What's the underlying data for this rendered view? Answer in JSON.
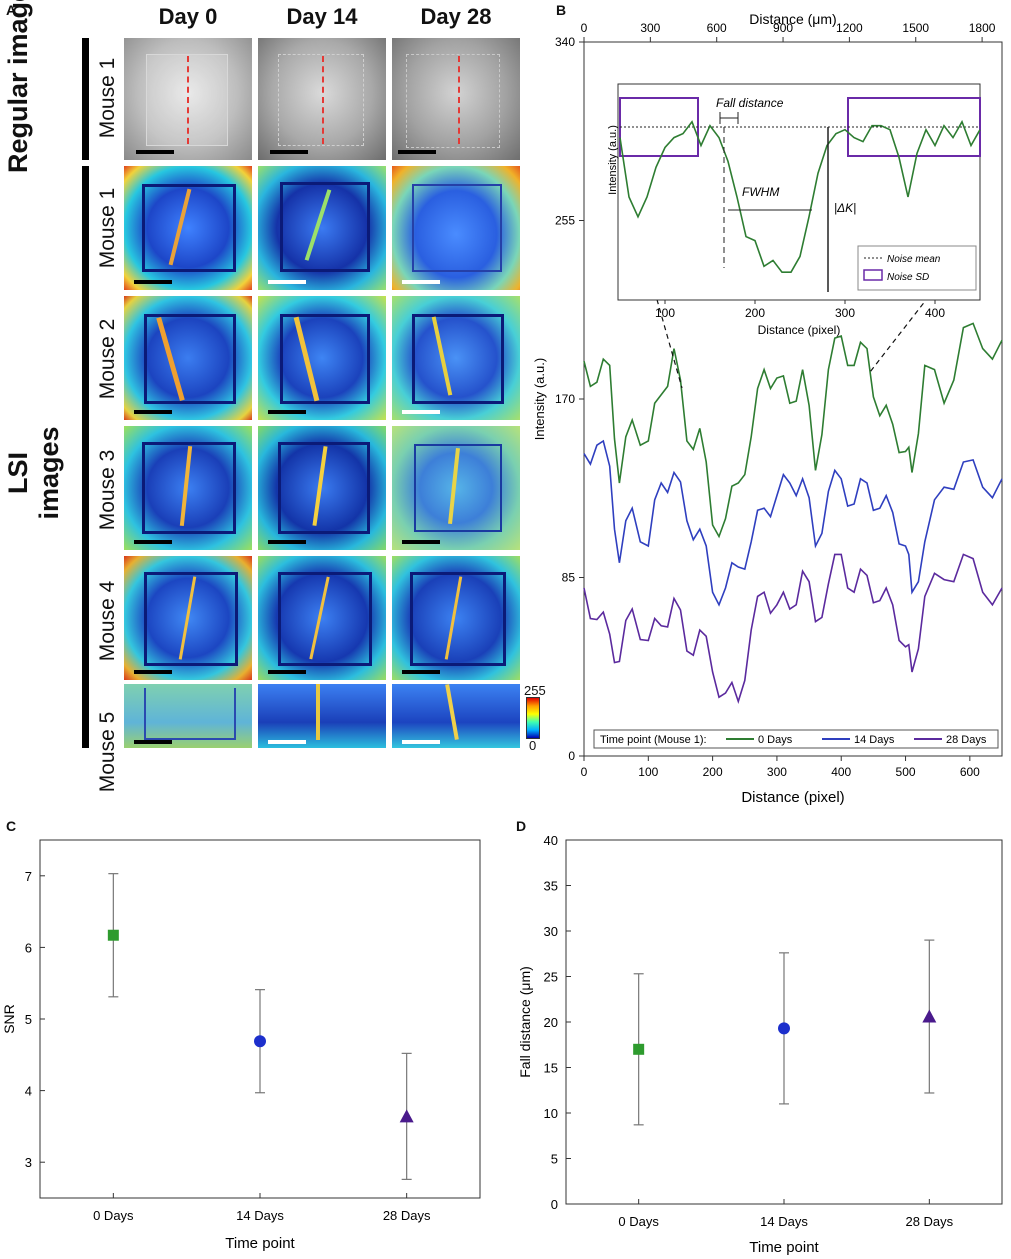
{
  "panel_a": {
    "letter": "A",
    "column_headers": [
      "Day 0",
      "Day 14",
      "Day 28"
    ],
    "group_labels": [
      "Regular images",
      "LSI images"
    ],
    "row_labels": [
      "Mouse 1",
      "Mouse 1",
      "Mouse 2",
      "Mouse 3",
      "Mouse 4",
      "Mouse 5"
    ],
    "colorbar": {
      "max": "255",
      "min": "0"
    }
  },
  "panel_b": {
    "letter": "B",
    "top_axis_label": "Distance (μm)",
    "bottom_axis_label": "Distance (pixel)",
    "y_axis_label": "Intensity (a.u.)",
    "inset": {
      "y_label": "Intensity (a.u.)",
      "x_label": "Distance (pixel)",
      "annotations": [
        "Fall distance",
        "FWHM",
        "|ΔK|"
      ],
      "legend": [
        "Noise mean",
        "Noise SD"
      ]
    },
    "legend": {
      "title": "Time point (Mouse 1):",
      "entries": [
        "0 Days",
        "14 Days",
        "28 Days"
      ]
    }
  },
  "panel_c": {
    "letter": "C"
  },
  "panel_d": {
    "letter": "D"
  },
  "chart_data": [
    {
      "id": "B",
      "type": "line",
      "title": "",
      "xlabel": "Distance (pixel)",
      "ylabel": "Intensity (a.u.)",
      "xlim": [
        0,
        650
      ],
      "ylim": [
        0,
        340
      ],
      "x_ticks": [
        "0",
        "100",
        "200",
        "300",
        "400",
        "500",
        "600"
      ],
      "y_ticks": [
        "0",
        "85",
        "170",
        "255",
        "340"
      ],
      "top_axis": {
        "label": "Distance (μm)",
        "ticks": [
          "0",
          "300",
          "600",
          "900",
          "1200",
          "1500",
          "1800"
        ]
      },
      "x": [
        0,
        20,
        40,
        55,
        75,
        100,
        120,
        140,
        160,
        180,
        200,
        220,
        240,
        260,
        280,
        300,
        320,
        340,
        360,
        380,
        400,
        420,
        440,
        460,
        480,
        500,
        510,
        530,
        560,
        590,
        620,
        650
      ],
      "series": [
        {
          "name": "0 Days",
          "color": "#2e7d32",
          "values": [
            188,
            178,
            186,
            130,
            160,
            150,
            172,
            194,
            150,
            156,
            110,
            113,
            130,
            152,
            184,
            180,
            168,
            184,
            136,
            184,
            200,
            186,
            194,
            162,
            158,
            145,
            135,
            186,
            168,
            204,
            194,
            198
          ]
        },
        {
          "name": "14 Days",
          "color": "#2f3fbf",
          "values": [
            144,
            148,
            138,
            92,
            118,
            100,
            130,
            135,
            112,
            108,
            78,
            80,
            90,
            102,
            118,
            124,
            130,
            132,
            100,
            126,
            132,
            120,
            130,
            118,
            116,
            100,
            78,
            102,
            128,
            140,
            128,
            132
          ]
        },
        {
          "name": "28 Days",
          "color": "#5b2a9e",
          "values": [
            80,
            65,
            58,
            45,
            70,
            55,
            62,
            75,
            50,
            60,
            40,
            30,
            26,
            60,
            78,
            72,
            70,
            88,
            64,
            82,
            96,
            78,
            86,
            74,
            72,
            52,
            40,
            76,
            84,
            96,
            78,
            80
          ]
        }
      ],
      "legend_position": "bottom"
    },
    {
      "id": "B-inset",
      "type": "line",
      "xlabel": "Distance (pixel)",
      "ylabel": "Intensity (a.u.)",
      "xlim": [
        50,
        450
      ],
      "x_ticks": [
        "100",
        "200",
        "300",
        "400"
      ],
      "x": [
        50,
        60,
        70,
        80,
        90,
        100,
        110,
        120,
        130,
        140,
        150,
        160,
        170,
        180,
        190,
        200,
        210,
        220,
        230,
        240,
        250,
        260,
        270,
        280,
        290,
        300,
        310,
        320,
        330,
        340,
        350,
        360,
        370,
        380,
        390,
        400,
        410,
        420,
        430,
        440,
        450
      ],
      "series": [
        {
          "name": "0 Days (Mouse 1)",
          "values": [
            180,
            150,
            140,
            150,
            165,
            175,
            180,
            182,
            188,
            176,
            186,
            180,
            168,
            150,
            130,
            128,
            115,
            118,
            112,
            112,
            120,
            140,
            162,
            176,
            182,
            184,
            180,
            178,
            186,
            186,
            184,
            170,
            150,
            172,
            184,
            176,
            186,
            180,
            188,
            176,
            184
          ]
        }
      ],
      "annotations": [
        "Fall distance",
        "FWHM",
        "|ΔK|",
        "Noise mean",
        "Noise SD"
      ]
    },
    {
      "id": "C",
      "type": "scatter",
      "xlabel": "Time point",
      "ylabel": "SNR",
      "categories": [
        "0 Days",
        "14 Days",
        "28 Days"
      ],
      "values": [
        6.17,
        4.69,
        3.64
      ],
      "error": [
        0.86,
        0.72,
        0.88
      ],
      "markers": [
        "square",
        "circle",
        "triangle"
      ],
      "colors": [
        "#2e9b2e",
        "#1c2fcc",
        "#4a1a8c"
      ],
      "ylim": [
        2.5,
        7.5
      ],
      "y_ticks": [
        "3",
        "4",
        "5",
        "6",
        "7"
      ]
    },
    {
      "id": "D",
      "type": "scatter",
      "xlabel": "Time point",
      "ylabel": "Fall distance (μm)",
      "categories": [
        "0 Days",
        "14 Days",
        "28 Days"
      ],
      "values": [
        17.0,
        19.3,
        20.6
      ],
      "error": [
        8.3,
        8.3,
        8.4
      ],
      "markers": [
        "square",
        "circle",
        "triangle"
      ],
      "colors": [
        "#2e9b2e",
        "#1c2fcc",
        "#4a1a8c"
      ],
      "ylim": [
        0,
        40
      ],
      "y_ticks": [
        "0",
        "5",
        "10",
        "15",
        "20",
        "25",
        "30",
        "35",
        "40"
      ]
    }
  ]
}
